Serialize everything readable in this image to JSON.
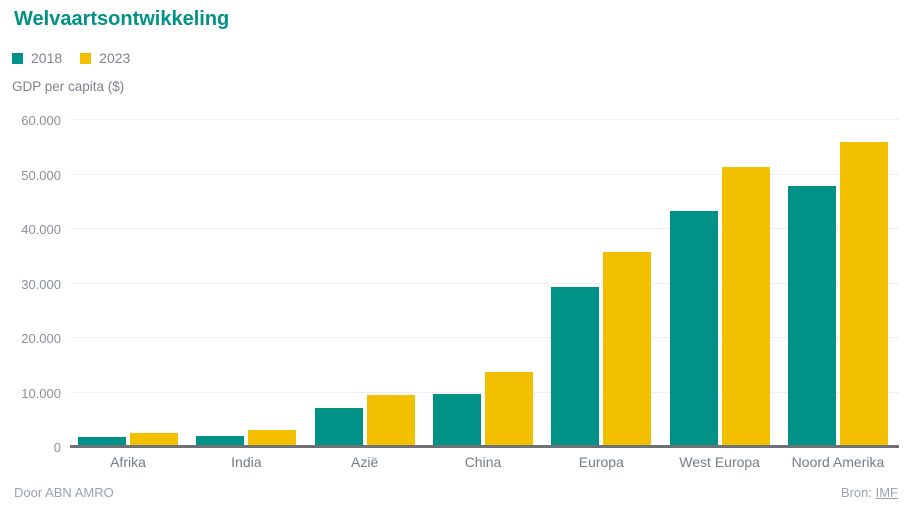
{
  "header": {
    "title": "Welvaartsontwikkeling",
    "title_color": "#009286"
  },
  "axis_title": "GDP per capita ($)",
  "footer": {
    "credit": "Door ABN AMRO",
    "source_label": "Bron:",
    "source_link": "IMF"
  },
  "colors": {
    "series_2018": "#009286",
    "series_2023": "#f3c000",
    "gridline": "#efefef",
    "axis_line": "#6e7277",
    "muted_text": "#7e848e"
  },
  "chart_data": {
    "type": "bar",
    "title": "Welvaartsontwikkeling",
    "ylabel": "GDP per capita ($)",
    "xlabel": "",
    "categories": [
      "Afrika",
      "India",
      "Azië",
      "China",
      "Europa",
      "West Europa",
      "Noord Amerika"
    ],
    "series": [
      {
        "name": "2018",
        "color": "#009286",
        "values": [
          1900,
          2000,
          7100,
          9700,
          29300,
          43300,
          47900
        ]
      },
      {
        "name": "2023",
        "color": "#f3c000",
        "values": [
          2600,
          3100,
          9600,
          13700,
          35700,
          51300,
          56000
        ]
      }
    ],
    "ylim": [
      0,
      60000
    ],
    "ytick_step": 10000,
    "ytick_labels": [
      "0",
      "10.000",
      "20.000",
      "30.000",
      "40.000",
      "50.000",
      "60.000"
    ],
    "grid": true,
    "legend_position": "top-left"
  }
}
